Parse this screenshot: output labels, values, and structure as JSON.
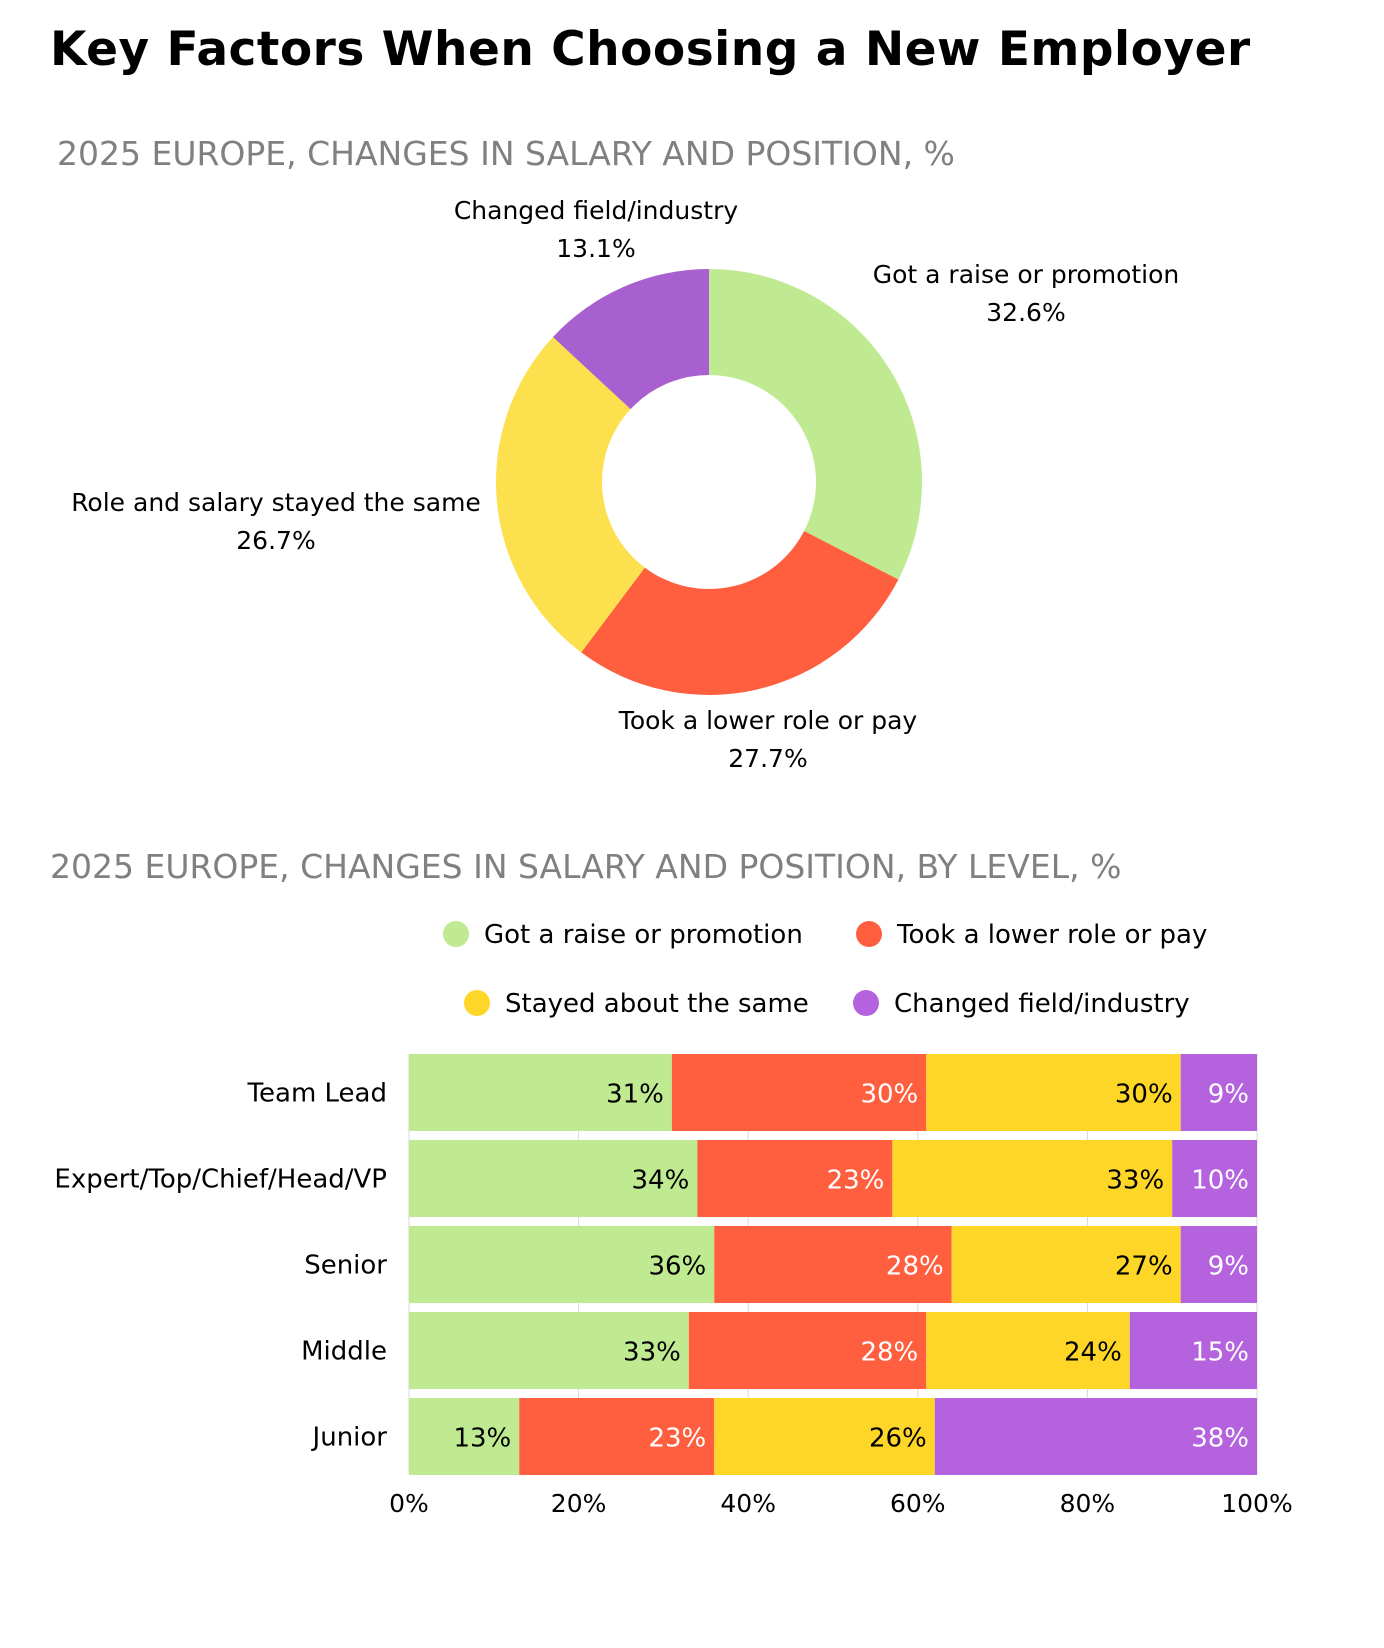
{
  "title": "Key Factors When Choosing a New Employer",
  "colors": {
    "raise": "#c0ea91",
    "lower": "#ff5f3f",
    "same": "#fde04d",
    "same_bar": "#fed627",
    "changed": "#a860d0",
    "changed_bar": "#b462dd"
  },
  "chart_data": [
    {
      "type": "pie",
      "donut": true,
      "title": "2025 EUROPE, CHANGES IN SALARY AND POSITION, %",
      "slices": [
        {
          "label": "Got a raise or promotion",
          "value": 32.6,
          "value_label": "32.6%",
          "color": "#c0ea91"
        },
        {
          "label": "Took a lower role or pay",
          "value": 27.7,
          "value_label": "27.7%",
          "color": "#ff5f3f"
        },
        {
          "label": "Role and salary stayed the same",
          "value": 26.7,
          "value_label": "26.7%",
          "color": "#fde04d"
        },
        {
          "label": "Changed field/industry",
          "value": 13.1,
          "value_label": "13.1%",
          "color": "#a860d0"
        }
      ]
    },
    {
      "type": "bar",
      "orientation": "horizontal",
      "stacked": true,
      "title": "2025 EUROPE, CHANGES IN SALARY AND POSITION, BY LEVEL, %",
      "legend_position": "top",
      "categories": [
        "Team Lead",
        "Expert/Top/Chief/Head/VP",
        "Senior",
        "Middle",
        "Junior"
      ],
      "series": [
        {
          "name": "Got a raise or promotion",
          "color": "#c0ea91",
          "label_color": "#000000",
          "values": [
            31,
            34,
            36,
            33,
            13
          ]
        },
        {
          "name": "Took a lower role or pay",
          "color": "#ff5f3f",
          "label_color": "#ffffff",
          "values": [
            30,
            23,
            28,
            28,
            23
          ]
        },
        {
          "name": "Stayed about the same",
          "color": "#fed627",
          "label_color": "#000000",
          "values": [
            30,
            33,
            27,
            24,
            26
          ]
        },
        {
          "name": "Changed field/industry",
          "color": "#b462dd",
          "label_color": "#ffffff",
          "values": [
            9,
            10,
            9,
            15,
            38
          ]
        }
      ],
      "legend_order": [
        "Got a raise or promotion",
        "Took a lower role or pay",
        "Stayed about the same",
        "Changed field/industry"
      ],
      "x_ticks": [
        "0%",
        "20%",
        "40%",
        "60%",
        "80%",
        "100%"
      ],
      "xlim": [
        0,
        100
      ],
      "grid": true
    }
  ]
}
